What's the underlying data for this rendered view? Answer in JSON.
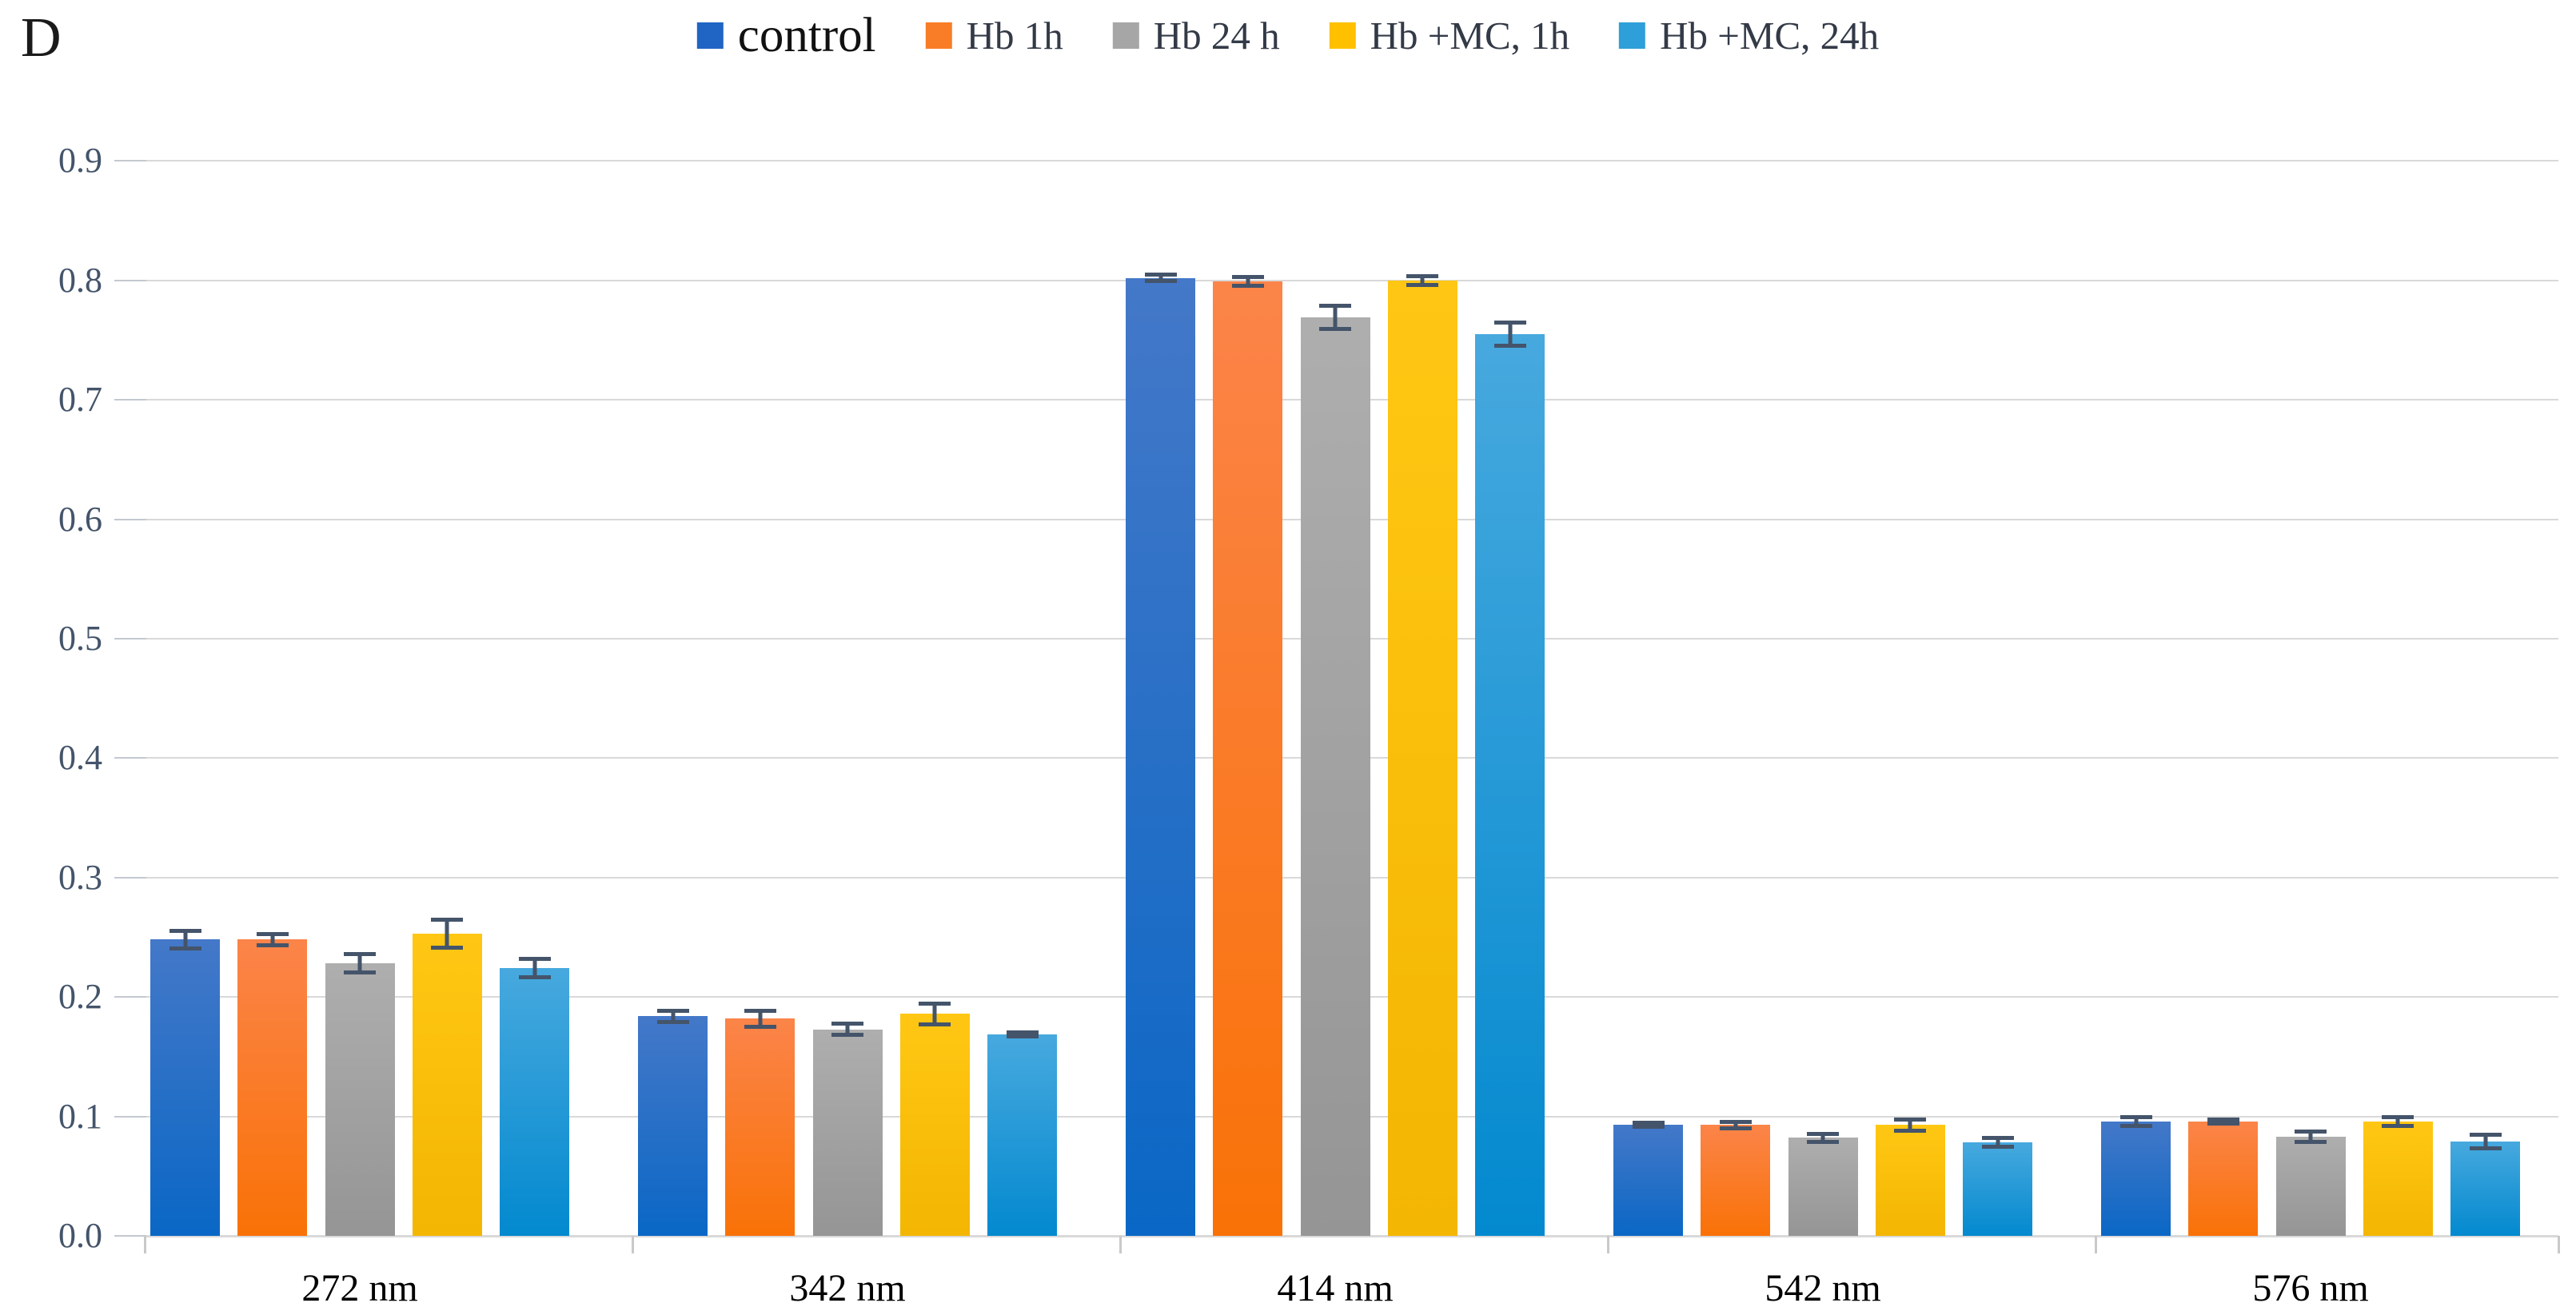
{
  "panel_label": "D",
  "chart_data": {
    "type": "bar",
    "title": "",
    "xlabel": "",
    "ylabel": "",
    "categories": [
      "272 nm",
      "342 nm",
      "414 nm",
      "542 nm",
      "576 nm"
    ],
    "series": [
      {
        "name": "control",
        "legend_color": "#2065C4",
        "gradient_top": "#4478C8",
        "gradient_bottom": "#0A67C5",
        "values": [
          0.248,
          0.184,
          0.802,
          0.093,
          0.096
        ],
        "errors": [
          0.008,
          0.005,
          0.003,
          0.002,
          0.004
        ]
      },
      {
        "name": "Hb 1h",
        "legend_color": "#F87D26",
        "gradient_top": "#FB8449",
        "gradient_bottom": "#F97207",
        "values": [
          0.248,
          0.182,
          0.799,
          0.093,
          0.096
        ],
        "errors": [
          0.005,
          0.007,
          0.004,
          0.003,
          0.002
        ]
      },
      {
        "name": "Hb 24 h",
        "legend_color": "#A6A6A6",
        "gradient_top": "#AEAEAE",
        "gradient_bottom": "#959595",
        "values": [
          0.228,
          0.173,
          0.769,
          0.082,
          0.083
        ],
        "errors": [
          0.008,
          0.005,
          0.01,
          0.004,
          0.005
        ]
      },
      {
        "name": "Hb +MC, 1h",
        "legend_color": "#FFC000",
        "gradient_top": "#FFC713",
        "gradient_bottom": "#F3B602",
        "values": [
          0.253,
          0.186,
          0.8,
          0.093,
          0.096
        ],
        "errors": [
          0.012,
          0.009,
          0.004,
          0.005,
          0.004
        ]
      },
      {
        "name": "Hb +MC, 24h",
        "legend_color": "#2E9FD8",
        "gradient_top": "#47A9DE",
        "gradient_bottom": "#0389CF",
        "values": [
          0.224,
          0.169,
          0.755,
          0.078,
          0.079
        ],
        "errors": [
          0.008,
          0.002,
          0.01,
          0.004,
          0.006
        ]
      }
    ],
    "ylim": [
      0.0,
      0.9
    ],
    "y_ticks": [
      "0.0",
      "0.1",
      "0.2",
      "0.3",
      "0.4",
      "0.5",
      "0.6",
      "0.7",
      "0.8",
      "0.9"
    ],
    "grid": true,
    "legend_position": "top",
    "grid_color": "#D9D9D9",
    "tick_label_color": "#44546A",
    "x_label_color": "#000000",
    "error_bar_color": "#44546A",
    "background_color": "#FFFFFF"
  }
}
